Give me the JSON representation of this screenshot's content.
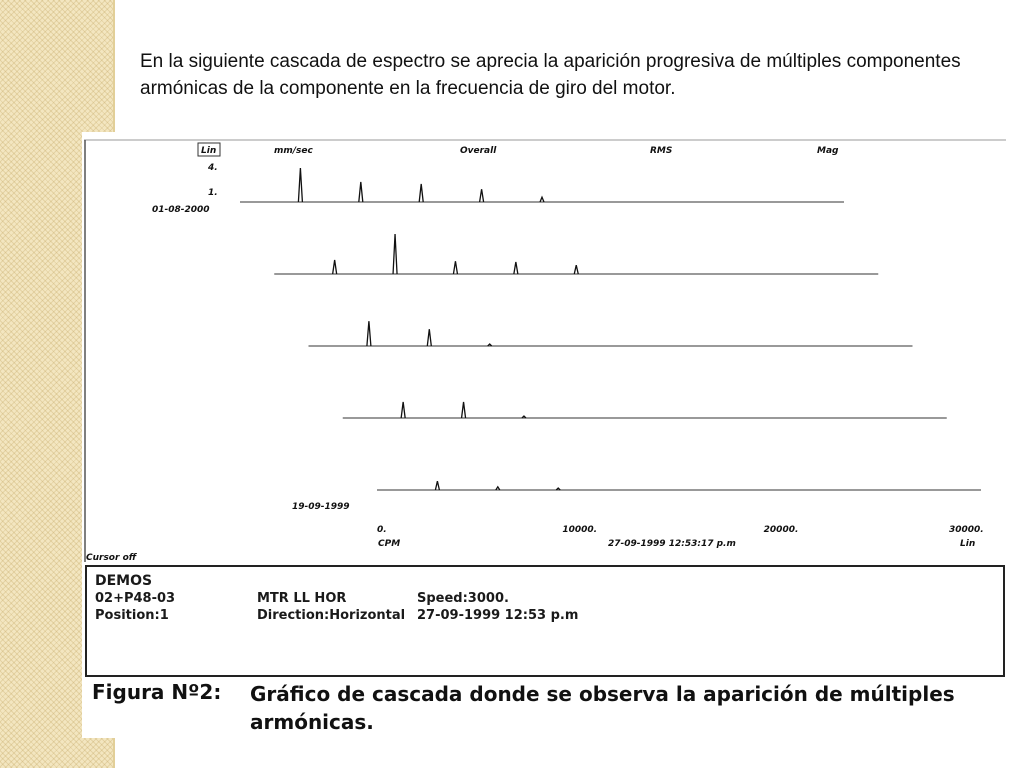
{
  "slide": {
    "intro_text": "En la siguiente cascada de espectro se aprecia la aparición progresiva de múltiples componentes armónicas de la componente en la frecuencia de giro del motor."
  },
  "figure": {
    "label": "Figura Nº2:",
    "caption": "Gráfico de cascada donde se observa la aparición de múltiples armónicas."
  },
  "chart_data": {
    "type": "line",
    "subtype": "waterfall-spectrum",
    "header": {
      "scale": "Lin",
      "units": "mm/sec",
      "overall": "Overall",
      "rms": "RMS",
      "mag": "Mag"
    },
    "y_scale_labels": [
      "4.",
      "1."
    ],
    "date_top": "01-08-2000",
    "date_bottom": "19-09-1999",
    "xlabel": "CPM",
    "x_scale": "Lin",
    "x_ticks": [
      {
        "value": 0,
        "label": "0."
      },
      {
        "value": 10000,
        "label": "10000."
      },
      {
        "value": 20000,
        "label": "20000."
      },
      {
        "value": 30000,
        "label": "30000."
      }
    ],
    "xlim": [
      0,
      30000
    ],
    "timestamp": "27-09-1999 12:53:17 p.m",
    "cursor": "Cursor off",
    "series": [
      {
        "peaks": [
          {
            "x": 3000,
            "y": 0.85
          },
          {
            "x": 6000,
            "y": 0.5
          },
          {
            "x": 9000,
            "y": 0.45
          },
          {
            "x": 12000,
            "y": 0.32
          },
          {
            "x": 15000,
            "y": 0.12
          }
        ]
      },
      {
        "peaks": [
          {
            "x": 3000,
            "y": 0.35
          },
          {
            "x": 6000,
            "y": 1.0
          },
          {
            "x": 9000,
            "y": 0.32
          },
          {
            "x": 12000,
            "y": 0.3
          },
          {
            "x": 15000,
            "y": 0.22
          }
        ]
      },
      {
        "peaks": [
          {
            "x": 3000,
            "y": 0.62
          },
          {
            "x": 6000,
            "y": 0.42
          },
          {
            "x": 9000,
            "y": 0.05
          }
        ]
      },
      {
        "peaks": [
          {
            "x": 3000,
            "y": 0.4
          },
          {
            "x": 6000,
            "y": 0.4
          },
          {
            "x": 9000,
            "y": 0.05
          }
        ]
      },
      {
        "peaks": [
          {
            "x": 3000,
            "y": 0.22
          },
          {
            "x": 6000,
            "y": 0.08
          },
          {
            "x": 9000,
            "y": 0.05
          }
        ]
      }
    ],
    "info": {
      "company": "DEMOS",
      "point_id": "02+P48-03",
      "position": "Position:1",
      "machine": "MTR LL HOR",
      "direction": "Direction:Horizontal",
      "speed": "Speed:3000.",
      "datetime": "27-09-1999 12:53 p.m"
    }
  }
}
